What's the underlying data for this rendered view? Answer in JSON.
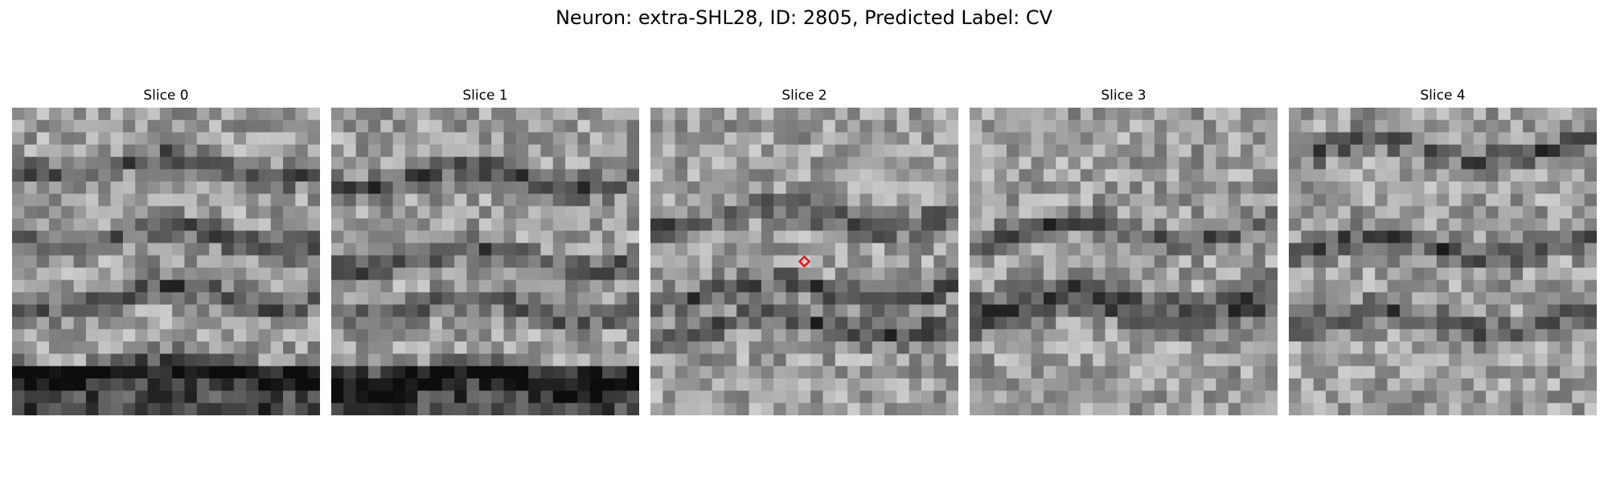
{
  "figure": {
    "title": "Neuron: extra-SHL28, ID: 2805, Predicted Label: CV"
  },
  "panels": [
    {
      "title": "Slice 0",
      "seed": 101,
      "bands": [
        0.18,
        0.42,
        0.62,
        0.86
      ],
      "dark_bottom": true,
      "marker": false
    },
    {
      "title": "Slice 1",
      "seed": 202,
      "bands": [
        0.22,
        0.5,
        0.66,
        0.9
      ],
      "dark_bottom": true,
      "marker": false
    },
    {
      "title": "Slice 2",
      "seed": 303,
      "bands": [
        0.35,
        0.6,
        0.72
      ],
      "dark_bottom": false,
      "marker": true
    },
    {
      "title": "Slice 3",
      "seed": 404,
      "bands": [
        0.4,
        0.62,
        0.68
      ],
      "dark_bottom": false,
      "marker": false
    },
    {
      "title": "Slice 4",
      "seed": 505,
      "bands": [
        0.12,
        0.45,
        0.7
      ],
      "dark_bottom": false,
      "marker": false
    }
  ],
  "colors": {
    "marker": "#e8141b"
  }
}
